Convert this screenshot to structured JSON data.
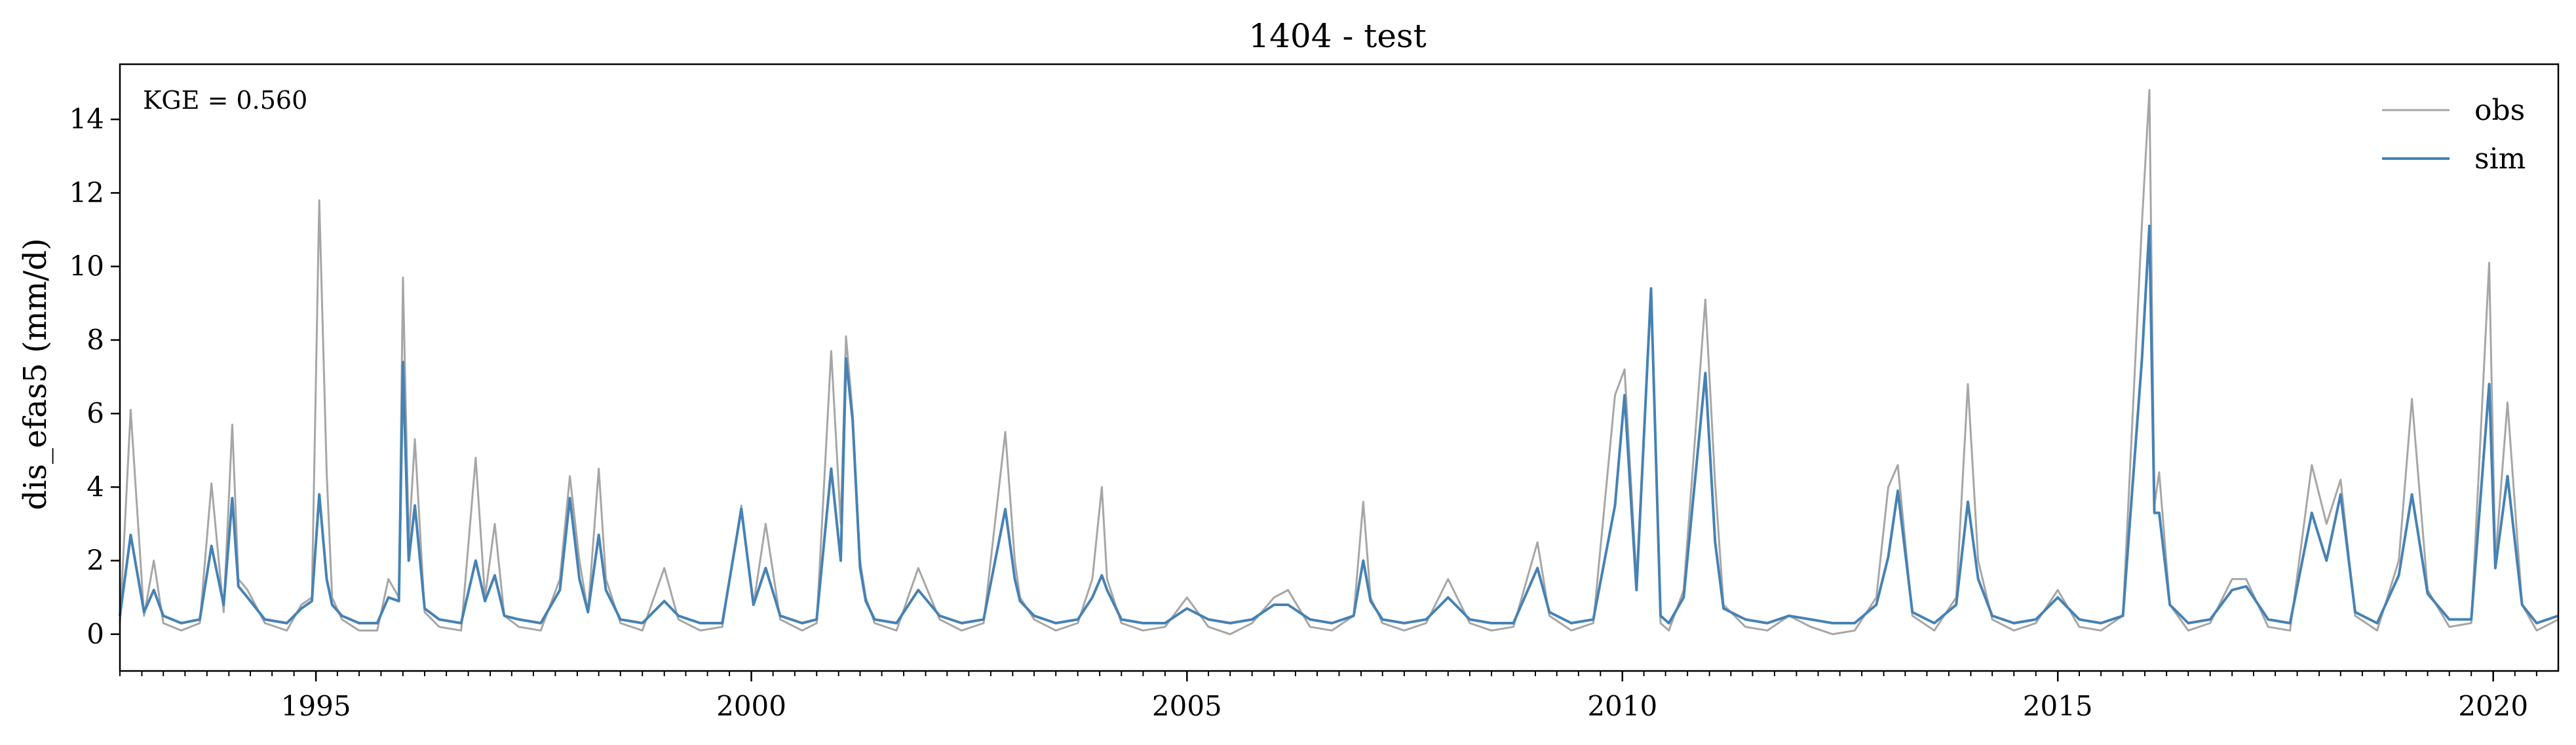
{
  "chart_data": {
    "type": "line",
    "title": "1404 - test",
    "xlabel": "",
    "ylabel": "dis_efas5 (mm/d)",
    "x_range": [
      "1992-10-01",
      "2020-09-30"
    ],
    "ylim": [
      -1.0,
      15.5
    ],
    "y_ticks": [
      0,
      2,
      4,
      6,
      8,
      10,
      12,
      14
    ],
    "x_ticks": [
      "1995",
      "2000",
      "2005",
      "2010",
      "2015",
      "2020"
    ],
    "grid": false,
    "legend": {
      "position": "top-right",
      "entries": [
        "obs",
        "sim"
      ]
    },
    "annotation": "KGE = 0.560",
    "colors": {
      "obs": "#a6a6a6",
      "sim": "#4682b4"
    },
    "series": [
      {
        "name": "obs",
        "x": [
          "1992-10-01",
          "1992-11-15",
          "1993-01-10",
          "1993-02-20",
          "1993-04-01",
          "1993-06-15",
          "1993-09-01",
          "1993-10-20",
          "1993-12-10",
          "1994-01-15",
          "1994-02-10",
          "1994-03-20",
          "1994-06-01",
          "1994-09-01",
          "1994-11-01",
          "1994-12-15",
          "1995-01-15",
          "1995-02-15",
          "1995-03-10",
          "1995-04-20",
          "1995-07-01",
          "1995-09-15",
          "1995-11-01",
          "1995-12-15",
          "1996-01-01",
          "1996-01-25",
          "1996-02-20",
          "1996-04-01",
          "1996-06-01",
          "1996-09-01",
          "1996-11-01",
          "1996-12-10",
          "1997-01-20",
          "1997-03-01",
          "1997-05-01",
          "1997-08-01",
          "1997-10-20",
          "1997-12-01",
          "1998-01-10",
          "1998-02-15",
          "1998-04-01",
          "1998-05-01",
          "1998-07-01",
          "1998-10-01",
          "1999-01-01",
          "1999-03-01",
          "1999-06-01",
          "1999-09-01",
          "1999-11-20",
          "2000-01-10",
          "2000-03-01",
          "2000-05-01",
          "2000-08-01",
          "2000-10-01",
          "2000-12-01",
          "2001-01-10",
          "2001-02-01",
          "2001-03-01",
          "2001-04-01",
          "2001-04-25",
          "2001-06-01",
          "2001-09-01",
          "2001-12-01",
          "2002-03-01",
          "2002-06-01",
          "2002-09-01",
          "2002-12-01",
          "2003-01-10",
          "2003-02-01",
          "2003-04-01",
          "2003-07-01",
          "2003-10-01",
          "2003-12-01",
          "2004-01-10",
          "2004-02-01",
          "2004-04-01",
          "2004-07-01",
          "2004-10-01",
          "2005-01-01",
          "2005-04-01",
          "2005-07-01",
          "2005-10-01",
          "2006-01-01",
          "2006-03-01",
          "2006-06-01",
          "2006-09-01",
          "2006-12-01",
          "2007-01-10",
          "2007-02-10",
          "2007-04-01",
          "2007-07-01",
          "2007-10-01",
          "2008-01-01",
          "2008-04-01",
          "2008-07-01",
          "2008-10-01",
          "2009-01-10",
          "2009-03-01",
          "2009-06-01",
          "2009-09-01",
          "2009-12-01",
          "2010-01-10",
          "2010-03-01",
          "2010-05-01",
          "2010-06-10",
          "2010-07-15",
          "2010-09-15",
          "2010-12-15",
          "2011-01-25",
          "2011-03-01",
          "2011-06-01",
          "2011-09-01",
          "2011-12-01",
          "2012-03-01",
          "2012-06-01",
          "2012-09-01",
          "2012-12-01",
          "2013-01-20",
          "2013-03-01",
          "2013-05-01",
          "2013-08-01",
          "2013-11-01",
          "2013-12-20",
          "2014-02-01",
          "2014-04-01",
          "2014-07-01",
          "2014-10-01",
          "2015-01-01",
          "2015-04-01",
          "2015-07-01",
          "2015-10-01",
          "2015-12-20",
          "2016-01-20",
          "2016-02-10",
          "2016-03-01",
          "2016-04-15",
          "2016-07-01",
          "2016-10-01",
          "2017-01-01",
          "2017-03-01",
          "2017-06-01",
          "2017-09-01",
          "2017-12-01",
          "2018-02-01",
          "2018-04-01",
          "2018-06-01",
          "2018-09-01",
          "2018-12-01",
          "2019-01-25",
          "2019-04-01",
          "2019-07-01",
          "2019-10-01",
          "2019-12-15",
          "2020-01-10",
          "2020-03-01",
          "2020-05-01",
          "2020-07-01",
          "2020-09-30"
        ],
        "y": [
          0.3,
          6.1,
          0.5,
          2.0,
          0.3,
          0.1,
          0.3,
          4.1,
          0.6,
          5.7,
          1.5,
          1.2,
          0.3,
          0.1,
          0.8,
          1.0,
          11.8,
          4.4,
          1.0,
          0.4,
          0.1,
          0.1,
          1.5,
          1.0,
          9.7,
          2.5,
          5.3,
          0.6,
          0.2,
          0.1,
          4.8,
          1.0,
          3.0,
          0.5,
          0.2,
          0.1,
          1.5,
          4.3,
          2.0,
          0.6,
          4.5,
          1.5,
          0.3,
          0.1,
          1.8,
          0.4,
          0.1,
          0.2,
          3.5,
          0.8,
          3.0,
          0.4,
          0.1,
          0.3,
          7.7,
          3.0,
          8.1,
          6.0,
          2.0,
          1.0,
          0.3,
          0.1,
          1.8,
          0.4,
          0.1,
          0.3,
          5.5,
          2.0,
          1.0,
          0.4,
          0.1,
          0.3,
          1.5,
          4.0,
          1.5,
          0.3,
          0.1,
          0.2,
          1.0,
          0.2,
          0.0,
          0.3,
          1.0,
          1.2,
          0.2,
          0.1,
          0.5,
          3.6,
          1.0,
          0.3,
          0.1,
          0.3,
          1.5,
          0.3,
          0.1,
          0.2,
          2.5,
          0.5,
          0.1,
          0.3,
          6.5,
          7.2,
          1.5,
          9.3,
          0.3,
          0.1,
          1.2,
          9.1,
          4.1,
          0.8,
          0.2,
          0.1,
          0.5,
          0.2,
          0.0,
          0.1,
          1.0,
          4.0,
          4.6,
          0.5,
          0.1,
          1.0,
          6.8,
          2.0,
          0.4,
          0.1,
          0.3,
          1.2,
          0.2,
          0.1,
          0.5,
          11.2,
          14.8,
          3.5,
          4.4,
          0.8,
          0.1,
          0.3,
          1.5,
          1.5,
          0.2,
          0.1,
          4.6,
          3.0,
          4.2,
          0.5,
          0.1,
          2.0,
          6.4,
          1.2,
          0.2,
          0.3,
          10.1,
          2.0,
          6.3,
          0.8,
          0.1,
          0.4
        ]
      },
      {
        "name": "sim",
        "x": [
          "1992-10-01",
          "1992-11-15",
          "1993-01-10",
          "1993-02-20",
          "1993-04-01",
          "1993-06-15",
          "1993-09-01",
          "1993-10-20",
          "1993-12-10",
          "1994-01-15",
          "1994-02-10",
          "1994-03-20",
          "1994-06-01",
          "1994-09-01",
          "1994-11-01",
          "1994-12-15",
          "1995-01-15",
          "1995-02-15",
          "1995-03-10",
          "1995-04-20",
          "1995-07-01",
          "1995-09-15",
          "1995-11-01",
          "1995-12-15",
          "1996-01-01",
          "1996-01-25",
          "1996-02-20",
          "1996-04-01",
          "1996-06-01",
          "1996-09-01",
          "1996-11-01",
          "1996-12-10",
          "1997-01-20",
          "1997-03-01",
          "1997-05-01",
          "1997-08-01",
          "1997-10-20",
          "1997-12-01",
          "1998-01-10",
          "1998-02-15",
          "1998-04-01",
          "1998-05-01",
          "1998-07-01",
          "1998-10-01",
          "1999-01-01",
          "1999-03-01",
          "1999-06-01",
          "1999-09-01",
          "1999-11-20",
          "2000-01-10",
          "2000-03-01",
          "2000-05-01",
          "2000-08-01",
          "2000-10-01",
          "2000-12-01",
          "2001-01-10",
          "2001-02-01",
          "2001-03-01",
          "2001-04-01",
          "2001-04-25",
          "2001-06-01",
          "2001-09-01",
          "2001-12-01",
          "2002-03-01",
          "2002-06-01",
          "2002-09-01",
          "2002-12-01",
          "2003-01-10",
          "2003-02-01",
          "2003-04-01",
          "2003-07-01",
          "2003-10-01",
          "2003-12-01",
          "2004-01-10",
          "2004-02-01",
          "2004-04-01",
          "2004-07-01",
          "2004-10-01",
          "2005-01-01",
          "2005-04-01",
          "2005-07-01",
          "2005-10-01",
          "2006-01-01",
          "2006-03-01",
          "2006-06-01",
          "2006-09-01",
          "2006-12-01",
          "2007-01-10",
          "2007-02-10",
          "2007-04-01",
          "2007-07-01",
          "2007-10-01",
          "2008-01-01",
          "2008-04-01",
          "2008-07-01",
          "2008-10-01",
          "2009-01-10",
          "2009-03-01",
          "2009-06-01",
          "2009-09-01",
          "2009-12-01",
          "2010-01-10",
          "2010-03-01",
          "2010-05-01",
          "2010-06-10",
          "2010-07-15",
          "2010-09-15",
          "2010-12-15",
          "2011-01-25",
          "2011-03-01",
          "2011-06-01",
          "2011-09-01",
          "2011-12-01",
          "2012-03-01",
          "2012-06-01",
          "2012-09-01",
          "2012-12-01",
          "2013-01-20",
          "2013-03-01",
          "2013-05-01",
          "2013-08-01",
          "2013-11-01",
          "2013-12-20",
          "2014-02-01",
          "2014-04-01",
          "2014-07-01",
          "2014-10-01",
          "2015-01-01",
          "2015-04-01",
          "2015-07-01",
          "2015-10-01",
          "2015-12-20",
          "2016-01-20",
          "2016-02-10",
          "2016-03-01",
          "2016-04-15",
          "2016-07-01",
          "2016-10-01",
          "2017-01-01",
          "2017-03-01",
          "2017-06-01",
          "2017-09-01",
          "2017-12-01",
          "2018-02-01",
          "2018-04-01",
          "2018-06-01",
          "2018-09-01",
          "2018-12-01",
          "2019-01-25",
          "2019-04-01",
          "2019-07-01",
          "2019-10-01",
          "2019-12-15",
          "2020-01-10",
          "2020-03-01",
          "2020-05-01",
          "2020-07-01",
          "2020-09-30"
        ],
        "y": [
          0.5,
          2.7,
          0.6,
          1.2,
          0.5,
          0.3,
          0.4,
          2.4,
          0.8,
          3.7,
          1.3,
          1.0,
          0.4,
          0.3,
          0.7,
          0.9,
          3.8,
          1.5,
          0.8,
          0.5,
          0.3,
          0.3,
          1.0,
          0.9,
          7.4,
          2.0,
          3.5,
          0.7,
          0.4,
          0.3,
          2.0,
          0.9,
          1.6,
          0.5,
          0.4,
          0.3,
          1.2,
          3.7,
          1.5,
          0.6,
          2.7,
          1.2,
          0.4,
          0.3,
          0.9,
          0.5,
          0.3,
          0.3,
          3.4,
          0.8,
          1.8,
          0.5,
          0.3,
          0.4,
          4.5,
          2.0,
          7.5,
          5.8,
          1.8,
          0.9,
          0.4,
          0.3,
          1.2,
          0.5,
          0.3,
          0.4,
          3.4,
          1.5,
          0.9,
          0.5,
          0.3,
          0.4,
          1.0,
          1.6,
          1.2,
          0.4,
          0.3,
          0.3,
          0.7,
          0.4,
          0.3,
          0.4,
          0.8,
          0.8,
          0.4,
          0.3,
          0.5,
          2.0,
          0.9,
          0.4,
          0.3,
          0.4,
          1.0,
          0.4,
          0.3,
          0.3,
          1.8,
          0.6,
          0.3,
          0.4,
          3.5,
          6.5,
          1.2,
          9.4,
          0.5,
          0.3,
          1.0,
          7.1,
          2.5,
          0.7,
          0.4,
          0.3,
          0.5,
          0.4,
          0.3,
          0.3,
          0.8,
          2.1,
          3.9,
          0.6,
          0.3,
          0.8,
          3.6,
          1.5,
          0.5,
          0.3,
          0.4,
          1.0,
          0.4,
          0.3,
          0.5,
          7.5,
          11.1,
          3.3,
          3.3,
          0.8,
          0.3,
          0.4,
          1.2,
          1.3,
          0.4,
          0.3,
          3.3,
          2.0,
          3.8,
          0.6,
          0.3,
          1.6,
          3.8,
          1.1,
          0.4,
          0.4,
          6.8,
          1.8,
          4.3,
          0.8,
          0.3,
          0.5
        ]
      }
    ]
  }
}
